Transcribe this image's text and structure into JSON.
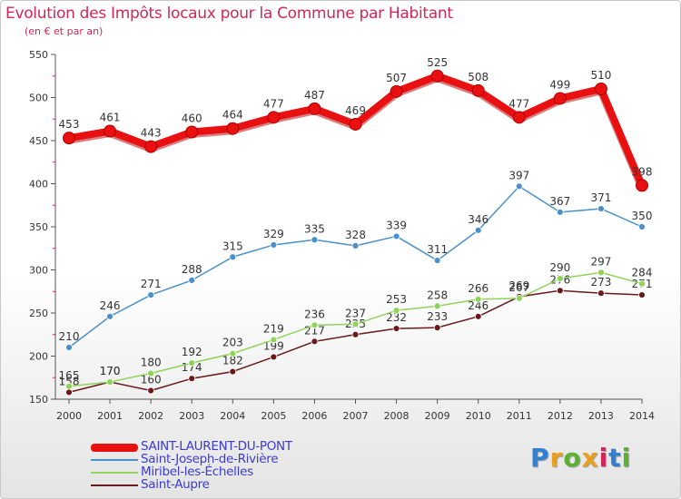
{
  "title": "Evolution des Impôts locaux pour la Commune par Habitant",
  "subtitle": "(en € et par an)",
  "logo": {
    "text": "Proxiti",
    "colors": [
      "#2f7fd3",
      "#e8a020",
      "#5bb130",
      "#e8a020",
      "#d0275a",
      "#2f7fd3",
      "#5bb130"
    ]
  },
  "chart_data": {
    "type": "line",
    "x": [
      "2000",
      "2001",
      "2002",
      "2003",
      "2004",
      "2005",
      "2006",
      "2007",
      "2008",
      "2009",
      "2010",
      "2011",
      "2012",
      "2013",
      "2014"
    ],
    "ylim": [
      150,
      550
    ],
    "yticks": [
      150,
      200,
      250,
      300,
      350,
      400,
      450,
      500,
      550
    ],
    "grid": false,
    "legend_position": "bottom-left",
    "series": [
      {
        "name": "SAINT-LAURENT-DU-PONT",
        "color": "#e81010",
        "values": [
          453,
          461,
          443,
          460,
          464,
          477,
          487,
          469,
          507,
          525,
          508,
          477,
          499,
          510,
          398
        ]
      },
      {
        "name": "Saint-Joseph-de-Rivière",
        "color": "#4a90c8",
        "values": [
          210,
          246,
          271,
          288,
          315,
          329,
          335,
          328,
          339,
          311,
          346,
          397,
          367,
          371,
          350
        ]
      },
      {
        "name": "Miribel-les-Échelles",
        "color": "#8fd35a",
        "values": [
          165,
          170,
          180,
          192,
          203,
          219,
          236,
          237,
          253,
          258,
          266,
          267,
          290,
          297,
          284
        ]
      },
      {
        "name": "Saint-Aupre",
        "color": "#6a1a1a",
        "values": [
          158,
          170,
          160,
          174,
          182,
          199,
          217,
          225,
          232,
          233,
          246,
          269,
          276,
          273,
          271
        ]
      }
    ]
  }
}
